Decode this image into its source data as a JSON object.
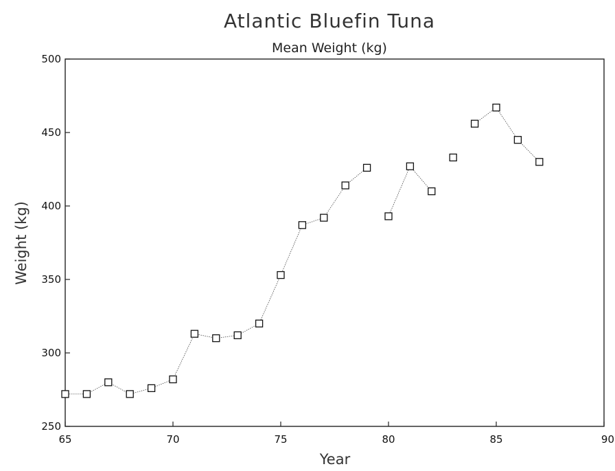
{
  "chart_data": {
    "type": "scatter",
    "title": "Atlantic Bluefin Tuna",
    "subtitle": "Mean Weight (kg)",
    "xlabel": "Year",
    "ylabel": "Weight (kg)",
    "xlim": [
      65,
      90
    ],
    "ylim": [
      250,
      500
    ],
    "xticks": [
      65,
      70,
      75,
      80,
      85,
      90
    ],
    "yticks": [
      250,
      300,
      350,
      400,
      450,
      500
    ],
    "grid": false,
    "marker": "open-square",
    "connected_segments": [
      [
        65,
        66,
        67,
        68,
        69,
        70,
        71,
        72,
        73,
        74,
        75,
        76,
        77,
        78,
        79
      ],
      [
        80,
        81,
        82
      ],
      [
        84,
        85,
        86,
        87
      ]
    ],
    "series": [
      {
        "x": [
          65,
          66,
          67,
          68,
          69,
          70,
          71,
          72,
          73,
          74,
          75,
          76,
          77,
          78,
          79,
          80,
          81,
          82,
          83,
          84,
          85,
          86,
          87
        ],
        "y": [
          272,
          272,
          280,
          272,
          276,
          282,
          313,
          310,
          312,
          320,
          353,
          387,
          392,
          414,
          426,
          393,
          427,
          410,
          433,
          456,
          467,
          445,
          430
        ]
      }
    ]
  }
}
